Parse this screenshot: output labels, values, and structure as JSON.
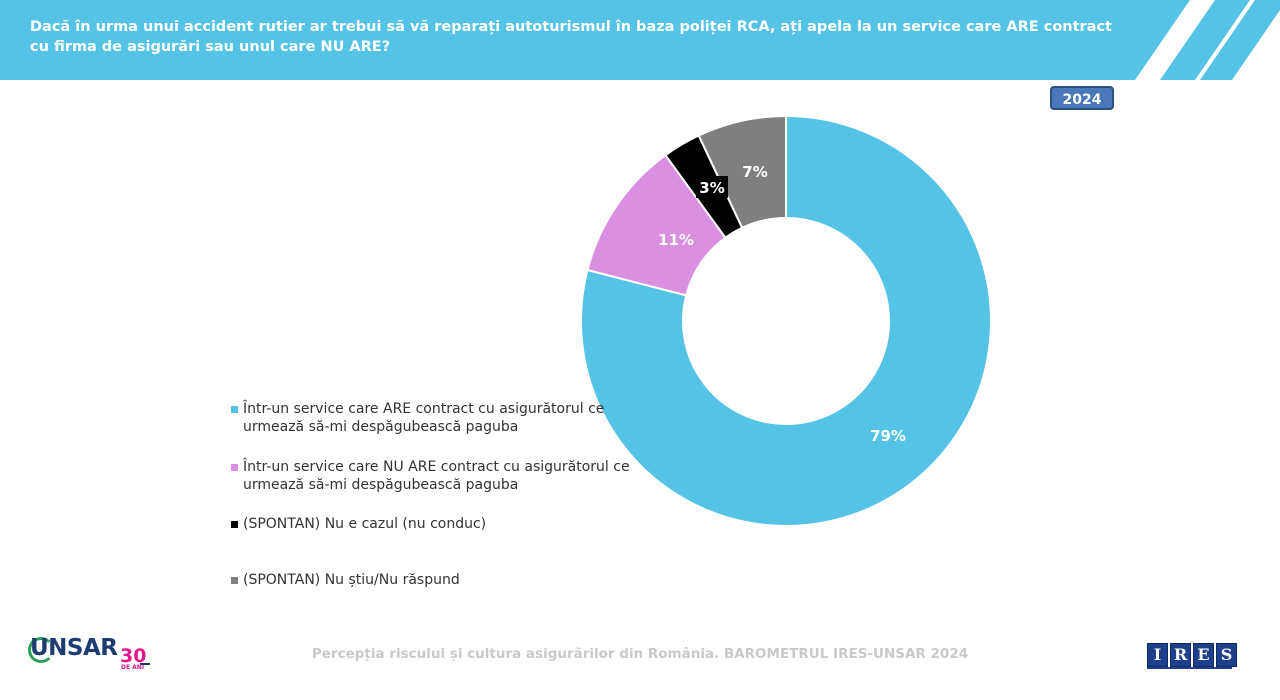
{
  "header": {
    "title": "Dacă în urma unui accident rutier ar trebui să vă reparați autoturismul în baza poliței RCA, ați apela la un service care ARE contract cu firma de asigurări sau unul care NU ARE?",
    "band_color": "#55c3e6"
  },
  "badge": {
    "year": "2024"
  },
  "chart_data": {
    "type": "pie",
    "donut": true,
    "start": "top, clockwise",
    "slices": [
      {
        "label": "Într-un service care ARE contract cu asigurătorul ce urmează să-mi despăgubească paguba",
        "value": 79,
        "display": "79%",
        "color": "#55c3e6"
      },
      {
        "label": "Într-un service care NU ARE contract cu asigurătorul ce urmează să-mi despăgubească paguba",
        "value": 11,
        "display": "11%",
        "color": "#da8fe0"
      },
      {
        "label": "(SPONTAN) Nu e cazul (nu conduc)",
        "value": 3,
        "display": "3%",
        "color": "#000000"
      },
      {
        "label": "(SPONTAN) Nu știu/Nu răspund",
        "value": 7,
        "display": "7%",
        "color": "#7f7f7f"
      }
    ],
    "legend_position": "left"
  },
  "footer": {
    "caption": "Percepția riscului și cultura asigurărilor din România. BAROMETRUL IRES-UNSAR 2024",
    "logo_left": {
      "text": "UNSAR",
      "anniversary": "30",
      "anniversary_sub": "DE ANI"
    },
    "logo_right": {
      "letters": [
        "I",
        "R",
        "E",
        "S"
      ]
    }
  }
}
